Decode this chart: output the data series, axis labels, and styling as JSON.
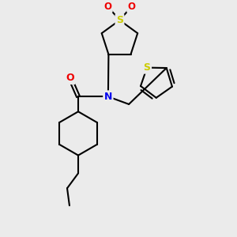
{
  "bg_color": "#ebebeb",
  "bond_color": "#000000",
  "bond_width": 1.5,
  "atom_colors": {
    "S": "#cccc00",
    "N": "#0000ee",
    "O": "#ee0000",
    "C": "#000000"
  },
  "figsize": [
    3.0,
    3.0
  ],
  "dpi": 100
}
